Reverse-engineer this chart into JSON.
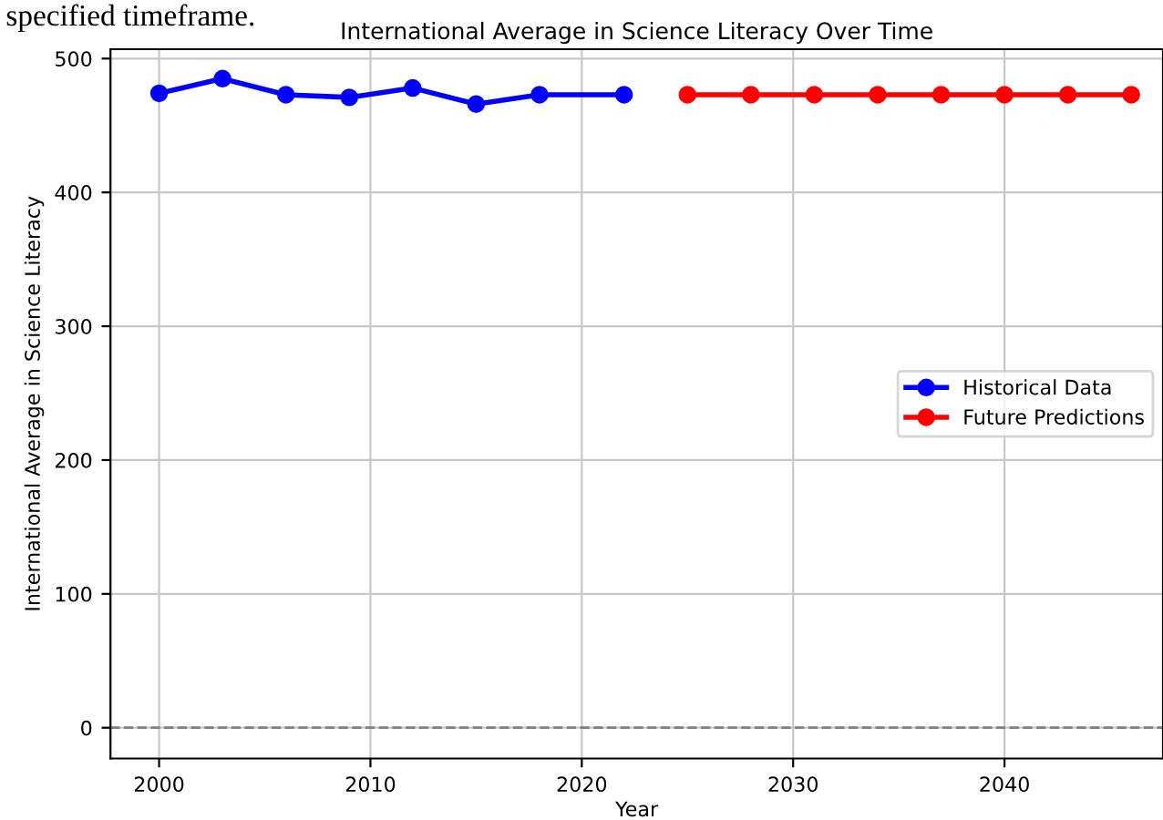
{
  "chart_data": {
    "type": "line",
    "title": "International Average in Science Literacy Over Time",
    "xlabel": "Year",
    "ylabel": "International Average in Science Literacy",
    "annotations": [
      "specified timeframe."
    ],
    "series": [
      {
        "name": "Historical Data",
        "color": "#0000ff",
        "x": [
          2000,
          2003,
          2006,
          2009,
          2012,
          2015,
          2018,
          2022
        ],
        "values": [
          474,
          485,
          473,
          471,
          478,
          466,
          473,
          473
        ]
      },
      {
        "name": "Future Predictions",
        "color": "#ff0000",
        "x": [
          2025,
          2028,
          2031,
          2034,
          2037,
          2040,
          2043,
          2046
        ],
        "values": [
          473,
          473,
          473,
          473,
          473,
          473,
          473,
          473
        ]
      }
    ],
    "xlim": [
      1997.7,
      2047.5
    ],
    "xticks": [
      2000,
      2010,
      2020,
      2030,
      2040
    ],
    "ylim": [
      -23,
      507
    ],
    "yticks": [
      0,
      100,
      200,
      300,
      400,
      500
    ],
    "ref_lines": [
      {
        "axis": "y",
        "value": 0,
        "color": "#808080",
        "line_style": "dashed"
      }
    ],
    "grid": true,
    "legend": "right",
    "marker": "circle",
    "line_style": "solid"
  }
}
